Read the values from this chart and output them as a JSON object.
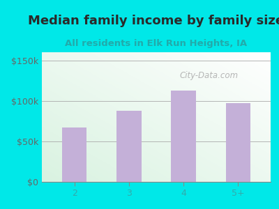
{
  "title": "Median family income by family size",
  "subtitle": "All residents in Elk Run Heights, IA",
  "categories": [
    "2",
    "3",
    "4",
    "5+"
  ],
  "values": [
    67000,
    88000,
    113000,
    97000
  ],
  "bar_color": "#c4b0d8",
  "title_color": "#2a2a2a",
  "subtitle_color": "#22aaaa",
  "background_color": "#00e8e8",
  "ylabel_ticks": [
    0,
    50000,
    100000,
    150000
  ],
  "ylabel_labels": [
    "$0",
    "$50k",
    "$100k",
    "$150k"
  ],
  "ylim": [
    0,
    160000
  ],
  "watermark": "City-Data.com",
  "title_fontsize": 13,
  "subtitle_fontsize": 9.5,
  "tick_fontsize": 9,
  "xtick_color": "#33aaaa",
  "ytick_color": "#666666"
}
